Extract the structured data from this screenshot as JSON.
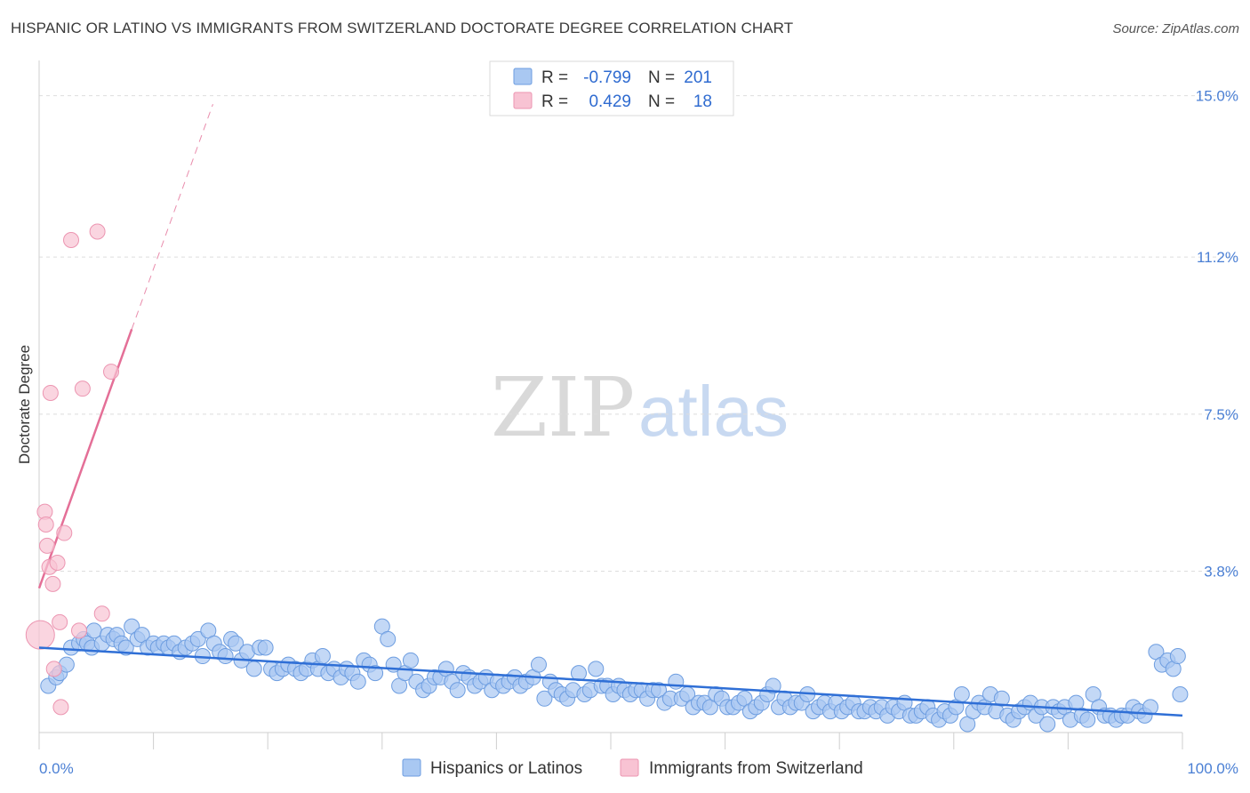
{
  "title": "HISPANIC OR LATINO VS IMMIGRANTS FROM SWITZERLAND DOCTORATE DEGREE CORRELATION CHART",
  "source": "Source: ZipAtlas.com",
  "watermark": {
    "zip": "ZIP",
    "atlas": "atlas"
  },
  "colors": {
    "blue": "#a9c8f2",
    "blue_stroke": "#6d9de0",
    "blue_line": "#2f6fd6",
    "pink": "#f8c3d3",
    "pink_stroke": "#ec95b1",
    "pink_line": "#e46f97",
    "grid": "#dedede",
    "tick_text": "#4a7fd4"
  },
  "legend": [
    {
      "r_label": "R =",
      "r_value": "-0.799",
      "n_label": "N =",
      "n_value": "201",
      "color": "blue"
    },
    {
      "r_label": "R =",
      "r_value": "0.429",
      "n_label": "N =",
      "n_value": "18",
      "color": "pink"
    }
  ],
  "bottom_legend": [
    "Hispanics or Latinos",
    "Immigrants from Switzerland"
  ],
  "chart_data": {
    "type": "scatter",
    "title": "HISPANIC OR LATINO VS IMMIGRANTS FROM SWITZERLAND DOCTORATE DEGREE CORRELATION CHART",
    "xlabel": "",
    "ylabel": "Doctorate Degree",
    "xlim": [
      0,
      100
    ],
    "ylim": [
      0,
      15.6
    ],
    "x_tick_labels": [
      "0.0%",
      "100.0%"
    ],
    "y_ticks": [
      3.8,
      7.5,
      11.2,
      15.0
    ],
    "y_tick_labels": [
      "3.8%",
      "7.5%",
      "11.2%",
      "15.0%"
    ],
    "grid": true,
    "series": [
      {
        "name": "Hispanics or Latinos",
        "color": "blue",
        "trend": {
          "x0": 0,
          "y0": 2.0,
          "x1": 100,
          "y1": 0.4
        },
        "points": [
          [
            0.8,
            1.1
          ],
          [
            1.5,
            1.3
          ],
          [
            1.8,
            1.4
          ],
          [
            2.4,
            1.6
          ],
          [
            2.8,
            2.0
          ],
          [
            3.5,
            2.1
          ],
          [
            3.9,
            2.2
          ],
          [
            4.2,
            2.1
          ],
          [
            4.6,
            2.0
          ],
          [
            4.8,
            2.4
          ],
          [
            5.5,
            2.1
          ],
          [
            6.0,
            2.3
          ],
          [
            6.5,
            2.2
          ],
          [
            6.8,
            2.3
          ],
          [
            7.2,
            2.1
          ],
          [
            7.6,
            2.0
          ],
          [
            8.1,
            2.5
          ],
          [
            8.6,
            2.2
          ],
          [
            9.0,
            2.3
          ],
          [
            9.5,
            2.0
          ],
          [
            10.0,
            2.1
          ],
          [
            10.4,
            2.0
          ],
          [
            10.9,
            2.1
          ],
          [
            11.3,
            2.0
          ],
          [
            11.8,
            2.1
          ],
          [
            12.3,
            1.9
          ],
          [
            12.8,
            2.0
          ],
          [
            13.4,
            2.1
          ],
          [
            13.9,
            2.2
          ],
          [
            14.3,
            1.8
          ],
          [
            14.8,
            2.4
          ],
          [
            15.3,
            2.1
          ],
          [
            15.8,
            1.9
          ],
          [
            16.3,
            1.8
          ],
          [
            16.8,
            2.2
          ],
          [
            17.2,
            2.1
          ],
          [
            17.7,
            1.7
          ],
          [
            18.2,
            1.9
          ],
          [
            18.8,
            1.5
          ],
          [
            19.3,
            2.0
          ],
          [
            19.8,
            2.0
          ],
          [
            20.3,
            1.5
          ],
          [
            20.8,
            1.4
          ],
          [
            21.3,
            1.5
          ],
          [
            21.8,
            1.6
          ],
          [
            22.4,
            1.5
          ],
          [
            22.9,
            1.4
          ],
          [
            23.4,
            1.5
          ],
          [
            23.9,
            1.7
          ],
          [
            24.4,
            1.5
          ],
          [
            24.8,
            1.8
          ],
          [
            25.3,
            1.4
          ],
          [
            25.8,
            1.5
          ],
          [
            26.4,
            1.3
          ],
          [
            26.9,
            1.5
          ],
          [
            27.4,
            1.4
          ],
          [
            27.9,
            1.2
          ],
          [
            28.4,
            1.7
          ],
          [
            28.9,
            1.6
          ],
          [
            29.4,
            1.4
          ],
          [
            30.0,
            2.5
          ],
          [
            30.5,
            2.2
          ],
          [
            31.0,
            1.6
          ],
          [
            31.5,
            1.1
          ],
          [
            32.0,
            1.4
          ],
          [
            32.5,
            1.7
          ],
          [
            33.0,
            1.2
          ],
          [
            33.6,
            1.0
          ],
          [
            34.1,
            1.1
          ],
          [
            34.6,
            1.3
          ],
          [
            35.1,
            1.3
          ],
          [
            35.6,
            1.5
          ],
          [
            36.1,
            1.2
          ],
          [
            36.6,
            1.0
          ],
          [
            37.1,
            1.4
          ],
          [
            37.6,
            1.3
          ],
          [
            38.1,
            1.1
          ],
          [
            38.6,
            1.2
          ],
          [
            39.1,
            1.3
          ],
          [
            39.6,
            1.0
          ],
          [
            40.1,
            1.2
          ],
          [
            40.6,
            1.1
          ],
          [
            41.1,
            1.2
          ],
          [
            41.6,
            1.3
          ],
          [
            42.1,
            1.1
          ],
          [
            42.6,
            1.2
          ],
          [
            43.2,
            1.3
          ],
          [
            43.7,
            1.6
          ],
          [
            44.2,
            0.8
          ],
          [
            44.7,
            1.2
          ],
          [
            45.2,
            1.0
          ],
          [
            45.7,
            0.9
          ],
          [
            46.2,
            0.8
          ],
          [
            46.7,
            1.0
          ],
          [
            47.2,
            1.4
          ],
          [
            47.7,
            0.9
          ],
          [
            48.2,
            1.0
          ],
          [
            48.7,
            1.5
          ],
          [
            49.2,
            1.1
          ],
          [
            49.7,
            1.1
          ],
          [
            50.2,
            0.9
          ],
          [
            50.7,
            1.1
          ],
          [
            51.2,
            1.0
          ],
          [
            51.7,
            0.9
          ],
          [
            52.2,
            1.0
          ],
          [
            52.7,
            1.0
          ],
          [
            53.2,
            0.8
          ],
          [
            53.7,
            1.0
          ],
          [
            54.2,
            1.0
          ],
          [
            54.7,
            0.7
          ],
          [
            55.2,
            0.8
          ],
          [
            55.7,
            1.2
          ],
          [
            56.2,
            0.8
          ],
          [
            56.7,
            0.9
          ],
          [
            57.2,
            0.6
          ],
          [
            57.7,
            0.7
          ],
          [
            58.2,
            0.7
          ],
          [
            58.7,
            0.6
          ],
          [
            59.2,
            0.9
          ],
          [
            59.7,
            0.8
          ],
          [
            60.2,
            0.6
          ],
          [
            60.7,
            0.6
          ],
          [
            61.2,
            0.7
          ],
          [
            61.7,
            0.8
          ],
          [
            62.2,
            0.5
          ],
          [
            62.7,
            0.6
          ],
          [
            63.2,
            0.7
          ],
          [
            63.7,
            0.9
          ],
          [
            64.2,
            1.1
          ],
          [
            64.7,
            0.6
          ],
          [
            65.2,
            0.8
          ],
          [
            65.7,
            0.6
          ],
          [
            66.2,
            0.7
          ],
          [
            66.7,
            0.7
          ],
          [
            67.2,
            0.9
          ],
          [
            67.7,
            0.5
          ],
          [
            68.2,
            0.6
          ],
          [
            68.7,
            0.7
          ],
          [
            69.2,
            0.5
          ],
          [
            69.7,
            0.7
          ],
          [
            70.2,
            0.5
          ],
          [
            70.7,
            0.6
          ],
          [
            71.2,
            0.7
          ],
          [
            71.7,
            0.5
          ],
          [
            72.2,
            0.5
          ],
          [
            72.7,
            0.6
          ],
          [
            73.2,
            0.5
          ],
          [
            73.7,
            0.6
          ],
          [
            74.2,
            0.4
          ],
          [
            74.7,
            0.6
          ],
          [
            75.2,
            0.5
          ],
          [
            75.7,
            0.7
          ],
          [
            76.2,
            0.4
          ],
          [
            76.7,
            0.4
          ],
          [
            77.2,
            0.5
          ],
          [
            77.7,
            0.6
          ],
          [
            78.2,
            0.4
          ],
          [
            78.7,
            0.3
          ],
          [
            79.2,
            0.5
          ],
          [
            79.7,
            0.4
          ],
          [
            80.2,
            0.6
          ],
          [
            80.7,
            0.9
          ],
          [
            81.2,
            0.2
          ],
          [
            81.7,
            0.5
          ],
          [
            82.2,
            0.7
          ],
          [
            82.7,
            0.6
          ],
          [
            83.2,
            0.9
          ],
          [
            83.7,
            0.5
          ],
          [
            84.2,
            0.8
          ],
          [
            84.7,
            0.4
          ],
          [
            85.2,
            0.3
          ],
          [
            85.7,
            0.5
          ],
          [
            86.2,
            0.6
          ],
          [
            86.7,
            0.7
          ],
          [
            87.2,
            0.4
          ],
          [
            87.7,
            0.6
          ],
          [
            88.2,
            0.2
          ],
          [
            88.7,
            0.6
          ],
          [
            89.2,
            0.5
          ],
          [
            89.7,
            0.6
          ],
          [
            90.2,
            0.3
          ],
          [
            90.7,
            0.7
          ],
          [
            91.2,
            0.4
          ],
          [
            91.7,
            0.3
          ],
          [
            92.2,
            0.9
          ],
          [
            92.7,
            0.6
          ],
          [
            93.2,
            0.4
          ],
          [
            93.7,
            0.4
          ],
          [
            94.2,
            0.3
          ],
          [
            94.7,
            0.4
          ],
          [
            95.2,
            0.4
          ],
          [
            95.7,
            0.6
          ],
          [
            96.2,
            0.5
          ],
          [
            96.7,
            0.4
          ],
          [
            97.2,
            0.6
          ],
          [
            97.7,
            1.9
          ],
          [
            98.2,
            1.6
          ],
          [
            98.7,
            1.7
          ],
          [
            99.2,
            1.5
          ],
          [
            99.6,
            1.8
          ],
          [
            99.8,
            0.9
          ]
        ]
      },
      {
        "name": "Immigrants from Switzerland",
        "color": "pink",
        "trend": {
          "x0": 0,
          "y0": 3.4,
          "x1": 8.1,
          "y1": 9.5,
          "dash_x1": 15.2,
          "dash_y1": 14.8
        },
        "points": [
          [
            0.1,
            2.3
          ],
          [
            0.5,
            5.2
          ],
          [
            0.6,
            4.9
          ],
          [
            0.7,
            4.4
          ],
          [
            0.9,
            3.9
          ],
          [
            1.0,
            8.0
          ],
          [
            1.2,
            3.5
          ],
          [
            1.3,
            1.5
          ],
          [
            1.6,
            4.0
          ],
          [
            1.8,
            2.6
          ],
          [
            1.9,
            0.6
          ],
          [
            2.2,
            4.7
          ],
          [
            2.8,
            11.6
          ],
          [
            3.5,
            2.4
          ],
          [
            3.8,
            8.1
          ],
          [
            5.1,
            11.8
          ],
          [
            5.5,
            2.8
          ],
          [
            6.3,
            8.5
          ]
        ]
      }
    ]
  }
}
